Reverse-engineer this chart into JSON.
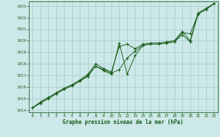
{
  "title": "Graphe pression niveau de la mer (hPa)",
  "background_color": "#cce8e8",
  "plot_bg_color": "#cce8e8",
  "grid_color": "#aacccc",
  "line_color": "#1a5c1a",
  "marker_color": "#1a5c1a",
  "xlim": [
    -0.5,
    23.5
  ],
  "ylim": [
    1013.8,
    1023.4
  ],
  "xticks": [
    0,
    1,
    2,
    3,
    4,
    5,
    6,
    7,
    8,
    9,
    10,
    11,
    12,
    13,
    14,
    15,
    16,
    17,
    18,
    19,
    20,
    21,
    22,
    23
  ],
  "yticks": [
    1014,
    1015,
    1016,
    1017,
    1018,
    1019,
    1020,
    1021,
    1022,
    1023
  ],
  "series": [
    [
      1014.2,
      1014.6,
      1015.0,
      1015.4,
      1015.8,
      1016.1,
      1016.5,
      1016.9,
      1017.8,
      1017.4,
      1017.1,
      1019.8,
      1017.1,
      1018.7,
      1019.6,
      1019.7,
      1019.7,
      1019.8,
      1019.9,
      1020.7,
      1020.6,
      1022.3,
      1022.7,
      1023.2
    ],
    [
      1014.2,
      1014.6,
      1015.0,
      1015.4,
      1015.8,
      1016.1,
      1016.5,
      1017.0,
      1017.8,
      1017.5,
      1017.2,
      1017.5,
      1018.5,
      1019.1,
      1019.6,
      1019.7,
      1019.7,
      1019.8,
      1019.9,
      1020.5,
      1019.9,
      1022.3,
      1022.7,
      1023.2
    ],
    [
      1014.2,
      1014.7,
      1015.1,
      1015.5,
      1015.9,
      1016.2,
      1016.6,
      1017.1,
      1018.0,
      1017.6,
      1017.3,
      1019.5,
      1019.7,
      1019.3,
      1019.7,
      1019.8,
      1019.8,
      1019.9,
      1020.0,
      1020.8,
      1020.0,
      1022.4,
      1022.8,
      1023.2
    ]
  ]
}
